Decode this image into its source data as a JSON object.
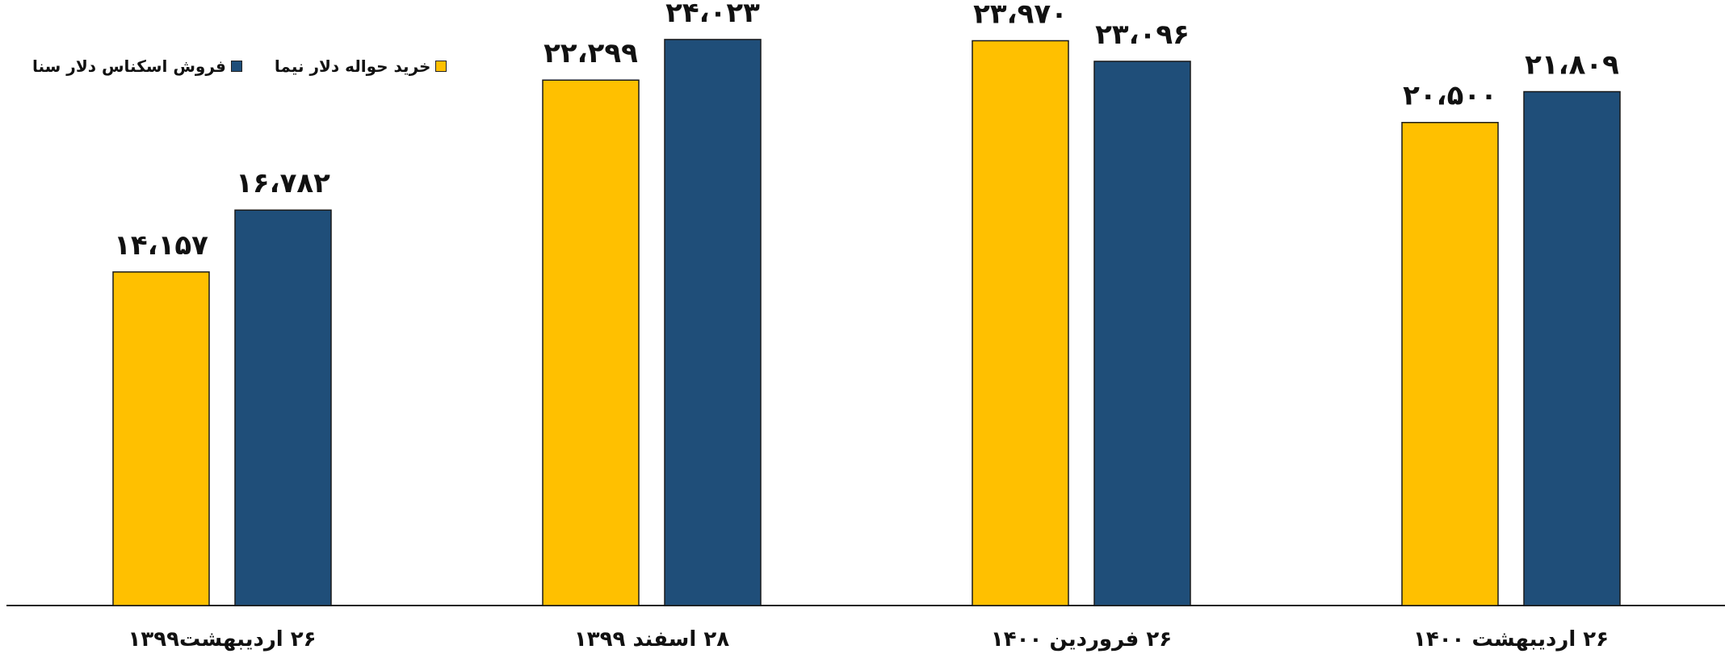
{
  "chart_data": {
    "type": "bar",
    "categories": [
      "۲۶ اردیبهشت۱۳۹۹",
      "۲۸ اسفند ۱۳۹۹",
      "۲۶ فروردین ۱۴۰۰",
      "۲۶ اردیبهشت ۱۴۰۰"
    ],
    "series": [
      {
        "name": "خرید حواله دلار نیما",
        "color": "#FFC000",
        "values": [
          14157,
          22299,
          23970,
          20500
        ],
        "labels": [
          "۱۴،۱۵۷",
          "۲۲،۲۹۹",
          "۲۳،۹۷۰",
          "۲۰،۵۰۰"
        ]
      },
      {
        "name": "فروش اسکناس دلار سنا",
        "color": "#1F4E79",
        "values": [
          16782,
          24023,
          23096,
          21809
        ],
        "labels": [
          "۱۶،۷۸۲",
          "۲۴،۰۲۳",
          "۲۳،۰۹۶",
          "۲۱،۸۰۹"
        ]
      }
    ],
    "ylim": [
      0,
      24500
    ],
    "grid": false,
    "legend_position": "top-left"
  }
}
